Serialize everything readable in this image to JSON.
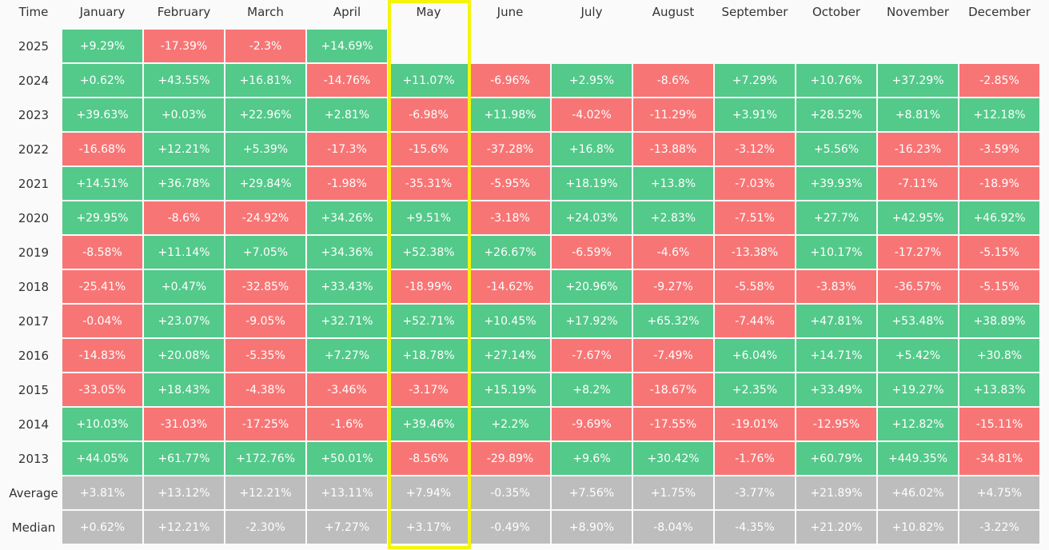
{
  "table": {
    "columns": [
      "Time",
      "January",
      "February",
      "March",
      "April",
      "May",
      "June",
      "July",
      "August",
      "September",
      "October",
      "November",
      "December"
    ],
    "rows": [
      {
        "label": "2025",
        "cells": [
          "+9.29%",
          "-17.39%",
          "-2.3%",
          "+14.69%"
        ]
      },
      {
        "label": "2024",
        "cells": [
          "+0.62%",
          "+43.55%",
          "+16.81%",
          "-14.76%",
          "+11.07%",
          "-6.96%",
          "+2.95%",
          "-8.6%",
          "+7.29%",
          "+10.76%",
          "+37.29%",
          "-2.85%"
        ]
      },
      {
        "label": "2023",
        "cells": [
          "+39.63%",
          "+0.03%",
          "+22.96%",
          "+2.81%",
          "-6.98%",
          "+11.98%",
          "-4.02%",
          "-11.29%",
          "+3.91%",
          "+28.52%",
          "+8.81%",
          "+12.18%"
        ]
      },
      {
        "label": "2022",
        "cells": [
          "-16.68%",
          "+12.21%",
          "+5.39%",
          "-17.3%",
          "-15.6%",
          "-37.28%",
          "+16.8%",
          "-13.88%",
          "-3.12%",
          "+5.56%",
          "-16.23%",
          "-3.59%"
        ]
      },
      {
        "label": "2021",
        "cells": [
          "+14.51%",
          "+36.78%",
          "+29.84%",
          "-1.98%",
          "-35.31%",
          "-5.95%",
          "+18.19%",
          "+13.8%",
          "-7.03%",
          "+39.93%",
          "-7.11%",
          "-18.9%"
        ]
      },
      {
        "label": "2020",
        "cells": [
          "+29.95%",
          "-8.6%",
          "-24.92%",
          "+34.26%",
          "+9.51%",
          "-3.18%",
          "+24.03%",
          "+2.83%",
          "-7.51%",
          "+27.7%",
          "+42.95%",
          "+46.92%"
        ]
      },
      {
        "label": "2019",
        "cells": [
          "-8.58%",
          "+11.14%",
          "+7.05%",
          "+34.36%",
          "+52.38%",
          "+26.67%",
          "-6.59%",
          "-4.6%",
          "-13.38%",
          "+10.17%",
          "-17.27%",
          "-5.15%"
        ]
      },
      {
        "label": "2018",
        "cells": [
          "-25.41%",
          "+0.47%",
          "-32.85%",
          "+33.43%",
          "-18.99%",
          "-14.62%",
          "+20.96%",
          "-9.27%",
          "-5.58%",
          "-3.83%",
          "-36.57%",
          "-5.15%"
        ]
      },
      {
        "label": "2017",
        "cells": [
          "-0.04%",
          "+23.07%",
          "-9.05%",
          "+32.71%",
          "+52.71%",
          "+10.45%",
          "+17.92%",
          "+65.32%",
          "-7.44%",
          "+47.81%",
          "+53.48%",
          "+38.89%"
        ]
      },
      {
        "label": "2016",
        "cells": [
          "-14.83%",
          "+20.08%",
          "-5.35%",
          "+7.27%",
          "+18.78%",
          "+27.14%",
          "-7.67%",
          "-7.49%",
          "+6.04%",
          "+14.71%",
          "+5.42%",
          "+30.8%"
        ]
      },
      {
        "label": "2015",
        "cells": [
          "-33.05%",
          "+18.43%",
          "-4.38%",
          "-3.46%",
          "-3.17%",
          "+15.19%",
          "+8.2%",
          "-18.67%",
          "+2.35%",
          "+33.49%",
          "+19.27%",
          "+13.83%"
        ]
      },
      {
        "label": "2014",
        "cells": [
          "+10.03%",
          "-31.03%",
          "-17.25%",
          "-1.6%",
          "+39.46%",
          "+2.2%",
          "-9.69%",
          "-17.55%",
          "-19.01%",
          "-12.95%",
          "+12.82%",
          "-15.11%"
        ]
      },
      {
        "label": "2013",
        "cells": [
          "+44.05%",
          "+61.77%",
          "+172.76%",
          "+50.01%",
          "-8.56%",
          "-29.89%",
          "+9.6%",
          "+30.42%",
          "-1.76%",
          "+60.79%",
          "+449.35%",
          "-34.81%"
        ]
      }
    ],
    "summary_rows": [
      {
        "label": "Average",
        "cells": [
          "+3.81%",
          "+13.12%",
          "+12.21%",
          "+13.11%",
          "+7.94%",
          "-0.35%",
          "+7.56%",
          "+1.75%",
          "-3.77%",
          "+21.89%",
          "+46.02%",
          "+4.75%"
        ]
      },
      {
        "label": "Median",
        "cells": [
          "+0.62%",
          "+12.21%",
          "-2.30%",
          "+7.27%",
          "+3.17%",
          "-0.49%",
          "+8.90%",
          "-8.04%",
          "-4.35%",
          "+21.20%",
          "+10.82%",
          "-3.22%"
        ]
      }
    ]
  }
}
